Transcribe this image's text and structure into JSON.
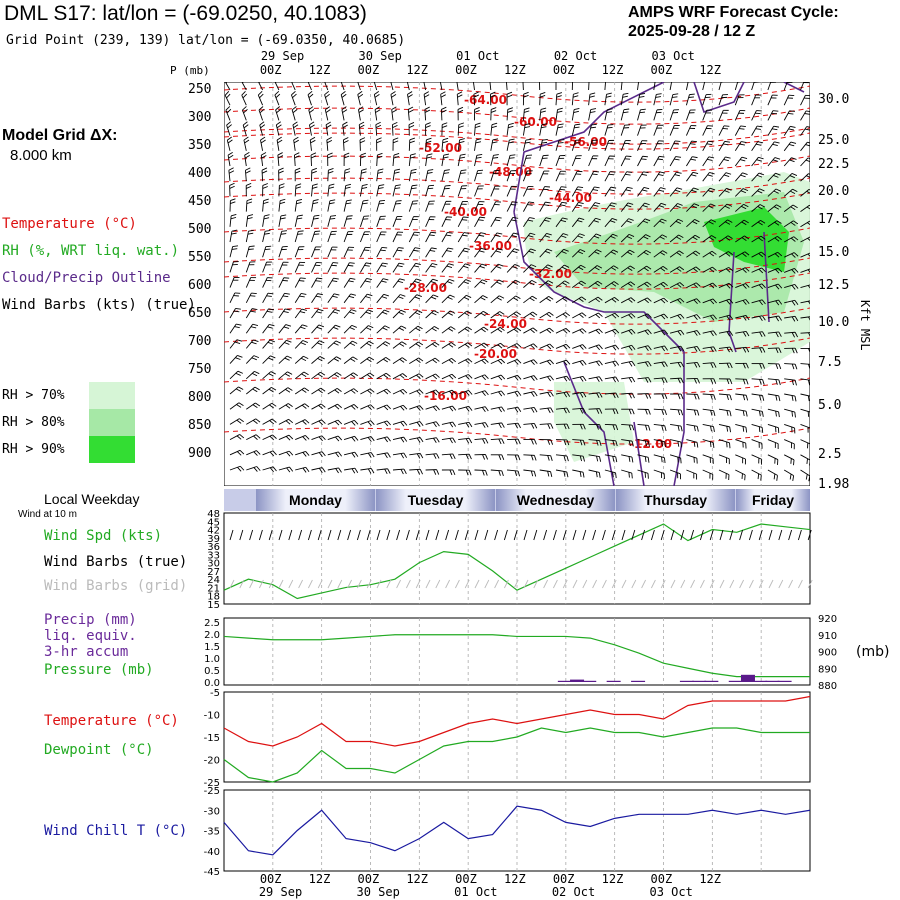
{
  "header": {
    "title": "DML S17:  lat/lon = (-69.0250, 40.1083)",
    "subtitle": "Grid Point (239, 139) lat/lon = (-69.0350, 40.0685)",
    "cycle_line1": "AMPS WRF Forecast Cycle:",
    "cycle_line2": "2025-09-28 / 12  Z"
  },
  "model_grid": {
    "line1": "Model Grid ΔX:",
    "line2": "8.000 km"
  },
  "legend": {
    "temperature": "Temperature (°C)",
    "rh": "RH (%, WRT liq. wat.)",
    "cloud": "Cloud/Precip Outline",
    "wind": "Wind Barbs (kts) (true)",
    "rh70": "RH > 70%",
    "rh80": "RH > 80%",
    "rh90": "RH > 90%"
  },
  "colors": {
    "temperature": "#dd1111",
    "rh_green": "#22aa22",
    "cloud": "#5a2a8a",
    "rh70": "#d6f5d6",
    "rh80": "#a6e8a6",
    "rh90": "#33dd33",
    "wind_chill": "#1a1aa0",
    "precip": "#5a1a8a"
  },
  "axes": {
    "pressure_title": "P (mb)",
    "pressure_ticks": [
      "250",
      "300",
      "350",
      "400",
      "450",
      "500",
      "550",
      "600",
      "650",
      "700",
      "750",
      "800",
      "850",
      "900"
    ],
    "kft_title": "Kft MSL",
    "kft_ticks": [
      "30.0",
      "25.0",
      "22.5",
      "20.0",
      "17.5",
      "15.0",
      "12.5",
      "10.0",
      "7.5",
      "5.0",
      "2.5",
      "1.98"
    ],
    "time_top_dates": [
      "29 Sep",
      "30 Sep",
      "01 Oct",
      "02 Oct",
      "03 Oct"
    ],
    "time_ticks": [
      "00Z",
      "12Z",
      "00Z",
      "12Z",
      "00Z",
      "12Z",
      "00Z",
      "12Z",
      "00Z",
      "12Z"
    ],
    "time_bottom_dates": [
      "29 Sep",
      "30 Sep",
      "01 Oct",
      "02 Oct",
      "03 Oct"
    ]
  },
  "temperature_contour_labels": [
    "-64.00",
    "-60.00",
    "-56.00",
    "-52.00",
    "-48.00",
    "-44.00",
    "-40.00",
    "-36.00",
    "-32.00",
    "-28.00",
    "-24.00",
    "-20.00",
    "-16.00",
    "-12.00"
  ],
  "weekday": {
    "title": "Local Weekday",
    "subtitle": "Wind at 10 m",
    "days": [
      "Monday",
      "Tuesday",
      "Wednesday",
      "Thursday",
      "Friday"
    ]
  },
  "wind_panel": {
    "label_speed": "Wind Spd (kts)",
    "label_barbs_true": "Wind Barbs (true)",
    "label_barbs_grid": "Wind Barbs (grid)",
    "y_ticks": [
      "48",
      "45",
      "42",
      "39",
      "36",
      "33",
      "30",
      "27",
      "24",
      "21",
      "18",
      "15"
    ]
  },
  "precip_panel": {
    "label_precip": "Precip (mm)",
    "label_liq": "liq. equiv.",
    "label_accum": "3-hr accum",
    "label_pressure": "Pressure (mb)",
    "y_left_ticks": [
      "2.5",
      "2.0",
      "1.5",
      "1.0",
      "0.5",
      "0.0"
    ],
    "y_right_ticks": [
      "920",
      "910",
      "900",
      "890",
      "880"
    ],
    "y_right_unit": "(mb)"
  },
  "temp_panel": {
    "label_temp": "Temperature (°C)",
    "label_dew": "Dewpoint (°C)",
    "y_ticks": [
      "-5",
      "-10",
      "-15",
      "-20",
      "-25"
    ]
  },
  "chill_panel": {
    "label": "Wind Chill T (°C)",
    "y_ticks": [
      "-25",
      "-30",
      "-35",
      "-40",
      "-45"
    ]
  },
  "chart_data": [
    {
      "type": "line",
      "title": "Wind Spd (kts)",
      "x_hours": [
        0,
        6,
        12,
        18,
        24,
        30,
        36,
        42,
        48,
        54,
        60,
        66,
        72,
        78,
        84,
        90,
        96,
        102,
        108,
        114,
        120,
        126,
        132,
        138,
        144
      ],
      "series": [
        {
          "name": "Wind Spd (kts)",
          "values": [
            20,
            24,
            22,
            17,
            19,
            21,
            22,
            24,
            30,
            34,
            33,
            27,
            20,
            24,
            28,
            32,
            36,
            40,
            44,
            38,
            42,
            41,
            44,
            43,
            42
          ]
        }
      ],
      "ylim": [
        15,
        48
      ]
    },
    {
      "type": "line",
      "title": "Pressure (mb)",
      "x_hours": [
        0,
        6,
        12,
        18,
        24,
        30,
        36,
        42,
        48,
        54,
        60,
        66,
        72,
        78,
        84,
        90,
        96,
        102,
        108,
        114,
        120,
        126,
        132,
        138,
        144
      ],
      "series": [
        {
          "name": "Pressure (mb)",
          "values": [
            909,
            908,
            907,
            907,
            907,
            908,
            909,
            910,
            910,
            910,
            910,
            910,
            909,
            909,
            909,
            908,
            904,
            899,
            893,
            890,
            887,
            885,
            885,
            885,
            885
          ]
        }
      ],
      "ylim": [
        880,
        920
      ]
    },
    {
      "type": "bar",
      "title": "Precip (mm)",
      "x_hours": [
        84,
        87,
        90,
        96,
        102,
        114,
        117,
        120,
        126,
        129,
        132,
        135,
        138
      ],
      "series": [
        {
          "name": "Precip (mm)",
          "values": [
            0.05,
            0.1,
            0.05,
            0.05,
            0.05,
            0.05,
            0.05,
            0.05,
            0.05,
            0.3,
            0.05,
            0.05,
            0.05
          ]
        }
      ],
      "ylim": [
        0,
        2.5
      ]
    },
    {
      "type": "line",
      "title": "Temperature (°C) / Dewpoint (°C)",
      "x_hours": [
        0,
        6,
        12,
        18,
        24,
        30,
        36,
        42,
        48,
        54,
        60,
        66,
        72,
        78,
        84,
        90,
        96,
        102,
        108,
        114,
        120,
        126,
        132,
        138,
        144
      ],
      "series": [
        {
          "name": "Temperature (°C)",
          "values": [
            -13,
            -16,
            -17,
            -15,
            -12,
            -16,
            -16,
            -17,
            -16,
            -14,
            -12,
            -11,
            -12,
            -11,
            -10,
            -9,
            -10,
            -10,
            -11,
            -8,
            -7,
            -7,
            -7,
            -7,
            -6
          ]
        },
        {
          "name": "Dewpoint (°C)",
          "values": [
            -20,
            -24,
            -25,
            -23,
            -18,
            -22,
            -22,
            -23,
            -20,
            -17,
            -16,
            -16,
            -15,
            -13,
            -14,
            -13,
            -14,
            -14,
            -15,
            -14,
            -13,
            -13,
            -14,
            -14,
            -14
          ]
        }
      ],
      "ylim": [
        -25,
        -5
      ]
    },
    {
      "type": "line",
      "title": "Wind Chill T (°C)",
      "x_hours": [
        0,
        6,
        12,
        18,
        24,
        30,
        36,
        42,
        48,
        54,
        60,
        66,
        72,
        78,
        84,
        90,
        96,
        102,
        108,
        114,
        120,
        126,
        132,
        138,
        144
      ],
      "series": [
        {
          "name": "Wind Chill T (°C)",
          "values": [
            -33,
            -40,
            -41,
            -35,
            -30,
            -37,
            -38,
            -40,
            -37,
            -33,
            -37,
            -36,
            -29,
            -30,
            -33,
            -34,
            -32,
            -31,
            -31,
            -31,
            -30,
            -31,
            -30,
            -31,
            -30
          ]
        }
      ],
      "ylim": [
        -45,
        -25
      ]
    }
  ]
}
